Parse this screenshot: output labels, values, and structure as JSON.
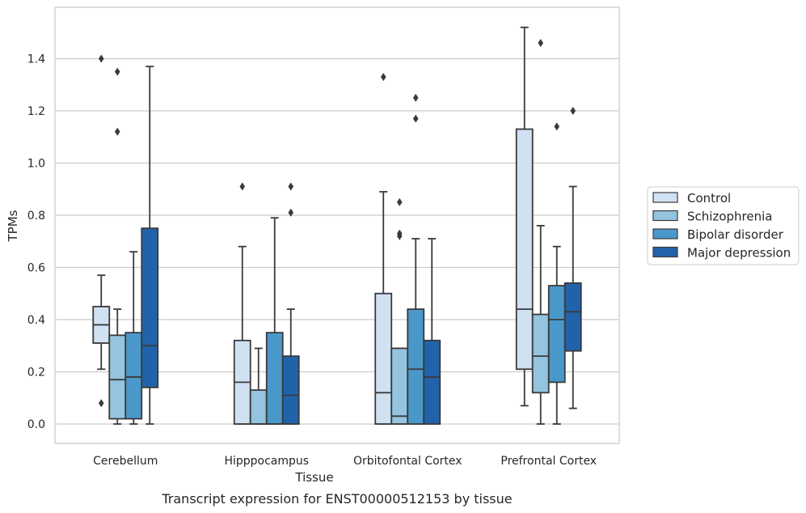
{
  "chart_data": {
    "type": "box",
    "title": "",
    "caption": "Transcript expression for ENST00000512153 by tissue",
    "xlabel": "Tissue",
    "ylabel": "TPMs",
    "ylim": [
      -0.07,
      1.6
    ],
    "yticks": [
      0.0,
      0.2,
      0.4,
      0.6,
      0.8,
      1.0,
      1.2,
      1.4
    ],
    "ytick_labels": [
      "0.0",
      "0.2",
      "0.4",
      "0.6",
      "0.8",
      "1.0",
      "1.2",
      "1.4"
    ],
    "grid": "horizontal",
    "legend_position": "outside-right",
    "categories": [
      "Cerebellum",
      "Hipppocampus",
      "Orbitofontal Cortex",
      "Prefrontal Cortex"
    ],
    "series": [
      {
        "name": "Control",
        "color": "#d0e1f2",
        "boxes": [
          {
            "whislo": 0.21,
            "q1": 0.31,
            "med": 0.38,
            "q3": 0.45,
            "whishi": 0.57,
            "fliers": [
              0.08,
              1.4
            ]
          },
          {
            "whislo": 0.0,
            "q1": 0.0,
            "med": 0.16,
            "q3": 0.32,
            "whishi": 0.68,
            "fliers": [
              0.91
            ]
          },
          {
            "whislo": 0.0,
            "q1": 0.0,
            "med": 0.12,
            "q3": 0.5,
            "whishi": 0.89,
            "fliers": [
              1.33
            ]
          },
          {
            "whislo": 0.07,
            "q1": 0.21,
            "med": 0.44,
            "q3": 1.13,
            "whishi": 1.52,
            "fliers": []
          }
        ]
      },
      {
        "name": "Schizophrenia",
        "color": "#94c4df",
        "boxes": [
          {
            "whislo": 0.0,
            "q1": 0.02,
            "med": 0.17,
            "q3": 0.34,
            "whishi": 0.44,
            "fliers": [
              1.12,
              1.35
            ]
          },
          {
            "whislo": 0.0,
            "q1": 0.0,
            "med": 0.0,
            "q3": 0.13,
            "whishi": 0.29,
            "fliers": []
          },
          {
            "whislo": 0.0,
            "q1": 0.0,
            "med": 0.03,
            "q3": 0.29,
            "whishi": 0.29,
            "fliers": [
              0.72,
              0.73,
              0.85
            ]
          },
          {
            "whislo": 0.0,
            "q1": 0.12,
            "med": 0.26,
            "q3": 0.42,
            "whishi": 0.76,
            "fliers": [
              1.46
            ]
          }
        ]
      },
      {
        "name": "Bipolar disorder",
        "color": "#4a98c9",
        "boxes": [
          {
            "whislo": 0.0,
            "q1": 0.02,
            "med": 0.18,
            "q3": 0.35,
            "whishi": 0.66,
            "fliers": []
          },
          {
            "whislo": 0.0,
            "q1": 0.0,
            "med": 0.0,
            "q3": 0.35,
            "whishi": 0.79,
            "fliers": []
          },
          {
            "whislo": 0.0,
            "q1": 0.0,
            "med": 0.21,
            "q3": 0.44,
            "whishi": 0.71,
            "fliers": [
              1.17,
              1.25
            ]
          },
          {
            "whislo": 0.0,
            "q1": 0.16,
            "med": 0.4,
            "q3": 0.53,
            "whishi": 0.68,
            "fliers": [
              1.14
            ]
          }
        ]
      },
      {
        "name": "Major depression",
        "color": "#2163aa",
        "boxes": [
          {
            "whislo": 0.0,
            "q1": 0.14,
            "med": 0.3,
            "q3": 0.75,
            "whishi": 1.37,
            "fliers": []
          },
          {
            "whislo": 0.0,
            "q1": 0.0,
            "med": 0.11,
            "q3": 0.26,
            "whishi": 0.44,
            "fliers": [
              0.81,
              0.91
            ]
          },
          {
            "whislo": 0.0,
            "q1": 0.0,
            "med": 0.18,
            "q3": 0.32,
            "whishi": 0.71,
            "fliers": []
          },
          {
            "whislo": 0.06,
            "q1": 0.28,
            "med": 0.43,
            "q3": 0.54,
            "whishi": 0.91,
            "fliers": [
              1.2
            ]
          }
        ]
      }
    ]
  }
}
